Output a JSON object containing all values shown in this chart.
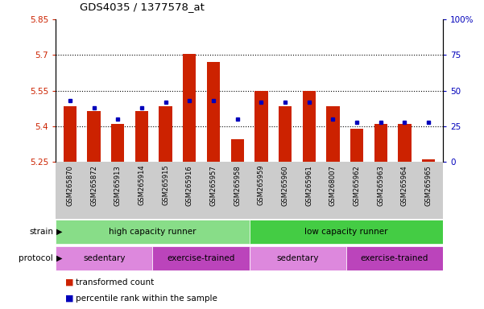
{
  "title": "GDS4035 / 1377578_at",
  "samples": [
    "GSM265870",
    "GSM265872",
    "GSM265913",
    "GSM265914",
    "GSM265915",
    "GSM265916",
    "GSM265957",
    "GSM265958",
    "GSM265959",
    "GSM265960",
    "GSM265961",
    "GSM268007",
    "GSM265962",
    "GSM265963",
    "GSM265964",
    "GSM265965"
  ],
  "bar_values": [
    5.485,
    5.465,
    5.41,
    5.465,
    5.485,
    5.705,
    5.67,
    5.345,
    5.55,
    5.485,
    5.55,
    5.485,
    5.39,
    5.41,
    5.41,
    5.26
  ],
  "blue_dot_values": [
    43,
    38,
    30,
    38,
    42,
    43,
    43,
    30,
    42,
    42,
    42,
    30,
    28,
    28,
    28,
    28
  ],
  "ymin": 5.25,
  "ymax": 5.85,
  "yticks": [
    5.25,
    5.4,
    5.55,
    5.7,
    5.85
  ],
  "ytick_labels": [
    "5.25",
    "5.4",
    "5.55",
    "5.7",
    "5.85"
  ],
  "y2min": 0,
  "y2max": 100,
  "y2ticks": [
    0,
    25,
    50,
    75,
    100
  ],
  "y2tick_labels": [
    "0",
    "25",
    "50",
    "75",
    "100%"
  ],
  "bar_color": "#cc2200",
  "dot_color": "#0000bb",
  "bar_bottom": 5.25,
  "grid_lines": [
    5.4,
    5.55,
    5.7
  ],
  "strain_groups": [
    {
      "label": "high capacity runner",
      "start": 0,
      "end": 8,
      "color": "#88dd88"
    },
    {
      "label": "low capacity runner",
      "start": 8,
      "end": 16,
      "color": "#44cc44"
    }
  ],
  "protocol_groups": [
    {
      "label": "sedentary",
      "start": 0,
      "end": 4,
      "color": "#dd88dd"
    },
    {
      "label": "exercise-trained",
      "start": 4,
      "end": 8,
      "color": "#bb44bb"
    },
    {
      "label": "sedentary",
      "start": 8,
      "end": 12,
      "color": "#dd88dd"
    },
    {
      "label": "exercise-trained",
      "start": 12,
      "end": 16,
      "color": "#bb44bb"
    }
  ],
  "legend_items": [
    {
      "label": "transformed count",
      "color": "#cc2200"
    },
    {
      "label": "percentile rank within the sample",
      "color": "#0000bb"
    }
  ],
  "tick_color_left": "#cc2200",
  "tick_color_right": "#0000bb",
  "bar_width": 0.55,
  "sample_bg_color": "#cccccc",
  "fig_width": 6.01,
  "fig_height": 3.84,
  "dpi": 100
}
